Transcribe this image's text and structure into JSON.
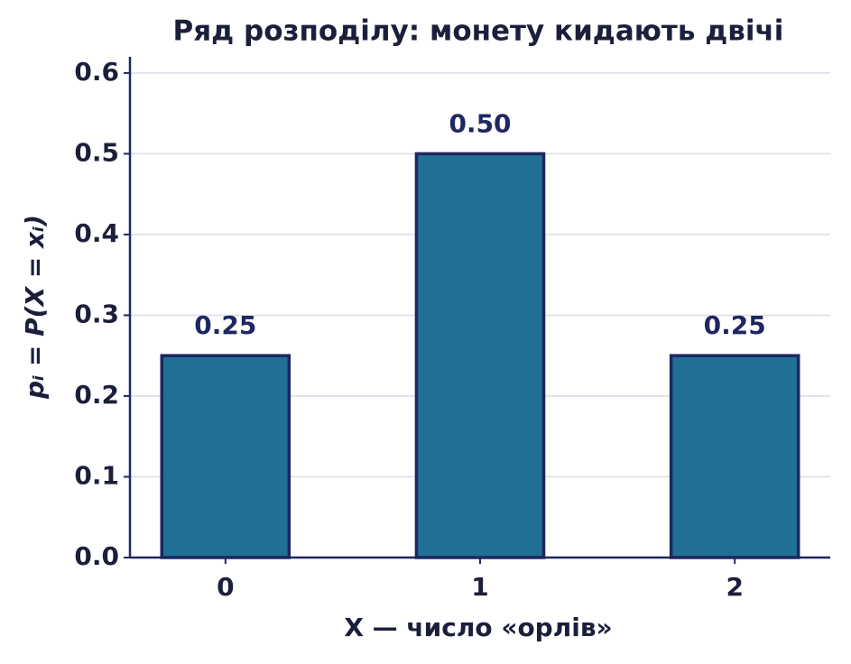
{
  "chart_data": {
    "type": "bar",
    "title": "Ряд розподілу: монету кидають двічі",
    "x_label": "X — число «орлів»",
    "y_label": "pᵢ = P(X = xᵢ)",
    "categories": [
      "0",
      "1",
      "2"
    ],
    "values": [
      0.25,
      0.5,
      0.25
    ],
    "value_labels": [
      "0.25",
      "0.50",
      "0.25"
    ],
    "color": "#1f7094",
    "edge_color": "#1e2761",
    "ylim": [
      0,
      0.62
    ],
    "yticks": [
      {
        "value": 0,
        "label": "0.0"
      },
      0.1,
      0.2,
      0.3,
      0.4,
      0.5,
      0.6
    ],
    "grid": true
  }
}
